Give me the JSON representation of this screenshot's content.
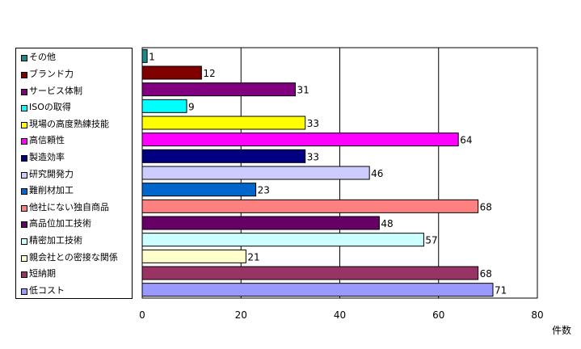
{
  "chart_data": {
    "type": "bar",
    "orientation": "horizontal",
    "categories": [
      "その他",
      "ブランド力",
      "サービス体制",
      "ISOの取得",
      "現場の高度熟練技能",
      "高信頼性",
      "製造効率",
      "研究開発力",
      "難削材加工",
      "他社にない独自商品",
      "高品位加工技術",
      "精密加工技術",
      "親会社との密接な関係",
      "短納期",
      "低コスト"
    ],
    "values": [
      1,
      12,
      31,
      9,
      33,
      64,
      33,
      46,
      23,
      68,
      48,
      57,
      21,
      68,
      71
    ],
    "colors": [
      "#1a8a8a",
      "#800000",
      "#800080",
      "#00ffff",
      "#ffff00",
      "#ff00ff",
      "#000080",
      "#ccccff",
      "#0066cc",
      "#ff8080",
      "#660066",
      "#ccffff",
      "#ffffcc",
      "#993366",
      "#9999ff"
    ],
    "xlabel": "件数",
    "xlim": [
      0,
      80
    ],
    "xticks": [
      "0",
      "20",
      "40",
      "60",
      "80"
    ],
    "grid": true,
    "legend_position": "left"
  }
}
